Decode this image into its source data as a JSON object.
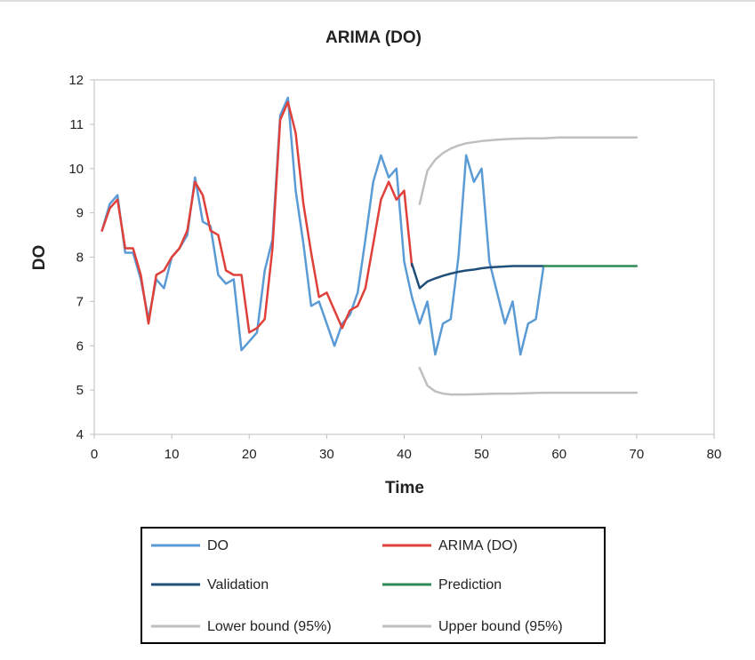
{
  "chart_data": {
    "type": "line",
    "title": "ARIMA (DO)",
    "xlabel": "Time",
    "ylabel": "DO",
    "xlim": [
      0,
      80
    ],
    "ylim": [
      4,
      12
    ],
    "x_ticks": [
      "0",
      "10",
      "20",
      "30",
      "40",
      "50",
      "60",
      "70",
      "80"
    ],
    "y_ticks": [
      "4",
      "5",
      "6",
      "7",
      "8",
      "9",
      "10",
      "11",
      "12"
    ],
    "grid": false,
    "legend_position": "bottom",
    "series": [
      {
        "name": "DO",
        "color": "#5b9bd5",
        "x": [
          1,
          2,
          3,
          4,
          5,
          6,
          7,
          8,
          9,
          10,
          11,
          12,
          13,
          14,
          15,
          16,
          17,
          18,
          19,
          20,
          21,
          22,
          23,
          24,
          25,
          26,
          27,
          28,
          29,
          30,
          31,
          32,
          33,
          34,
          35,
          36,
          37,
          38,
          39,
          40,
          41,
          42,
          43,
          44,
          45,
          46,
          47,
          48,
          49,
          50,
          51,
          52,
          53,
          54,
          55,
          56,
          57,
          58
        ],
        "y": [
          8.6,
          9.2,
          9.4,
          8.1,
          8.1,
          7.5,
          6.6,
          7.5,
          7.3,
          8.0,
          8.2,
          8.5,
          9.8,
          8.8,
          8.7,
          7.6,
          7.4,
          7.5,
          5.9,
          6.1,
          6.3,
          7.7,
          8.4,
          11.2,
          11.6,
          9.5,
          8.3,
          6.9,
          7.0,
          6.5,
          6.0,
          6.5,
          6.7,
          7.2,
          8.4,
          9.7,
          10.3,
          9.8,
          10.0,
          7.9,
          7.1,
          6.5,
          7.0,
          5.8,
          6.5,
          6.6,
          8.0,
          10.3,
          9.7,
          10.0,
          7.9,
          7.2,
          6.5,
          7.0,
          5.8,
          6.5,
          6.6,
          7.8
        ]
      },
      {
        "name": "ARIMA (DO)",
        "color": "#e0403a",
        "x": [
          1,
          2,
          3,
          4,
          5,
          6,
          7,
          8,
          9,
          10,
          11,
          12,
          13,
          14,
          15,
          16,
          17,
          18,
          19,
          20,
          21,
          22,
          23,
          24,
          25,
          26,
          27,
          28,
          29,
          30,
          31,
          32,
          33,
          34,
          35,
          36,
          37,
          38,
          39,
          40,
          41
        ],
        "y": [
          8.6,
          9.1,
          9.3,
          8.2,
          8.2,
          7.6,
          6.5,
          7.6,
          7.7,
          8.0,
          8.2,
          8.6,
          9.7,
          9.4,
          8.6,
          8.5,
          7.7,
          7.6,
          7.6,
          6.3,
          6.4,
          6.6,
          8.2,
          11.1,
          11.5,
          10.8,
          9.2,
          8.1,
          7.1,
          7.2,
          6.8,
          6.4,
          6.8,
          6.9,
          7.3,
          8.3,
          9.3,
          9.7,
          9.3,
          9.5,
          7.8
        ]
      },
      {
        "name": "Validation",
        "color": "#1f4e79",
        "x": [
          41,
          42,
          43,
          44,
          45,
          46,
          47,
          48,
          49,
          50,
          51,
          52,
          53,
          54,
          55,
          56,
          57,
          58
        ],
        "y": [
          7.85,
          7.3,
          7.45,
          7.52,
          7.58,
          7.63,
          7.67,
          7.7,
          7.72,
          7.75,
          7.77,
          7.78,
          7.79,
          7.8,
          7.8,
          7.8,
          7.8,
          7.8
        ]
      },
      {
        "name": "Prediction",
        "color": "#2e8b57",
        "x": [
          58,
          60,
          62,
          64,
          66,
          68,
          70
        ],
        "y": [
          7.8,
          7.8,
          7.8,
          7.8,
          7.8,
          7.8,
          7.8
        ]
      },
      {
        "name": "Lower bound (95%)",
        "color": "#bfbfbf",
        "x": [
          42,
          43,
          44,
          45,
          46,
          47,
          48,
          50,
          52,
          54,
          56,
          58,
          60,
          62,
          64,
          66,
          68,
          70
        ],
        "y": [
          5.5,
          5.1,
          4.97,
          4.92,
          4.9,
          4.9,
          4.9,
          4.91,
          4.92,
          4.92,
          4.93,
          4.94,
          4.94,
          4.94,
          4.94,
          4.94,
          4.94,
          4.94
        ]
      },
      {
        "name": "Upper bound (95%)",
        "color": "#bfbfbf",
        "x": [
          42,
          43,
          44,
          45,
          46,
          47,
          48,
          50,
          52,
          54,
          56,
          58,
          60,
          62,
          64,
          66,
          68,
          70
        ],
        "y": [
          9.2,
          9.95,
          10.2,
          10.35,
          10.45,
          10.52,
          10.57,
          10.62,
          10.65,
          10.67,
          10.68,
          10.68,
          10.7,
          10.7,
          10.7,
          10.7,
          10.7,
          10.7
        ]
      }
    ]
  }
}
